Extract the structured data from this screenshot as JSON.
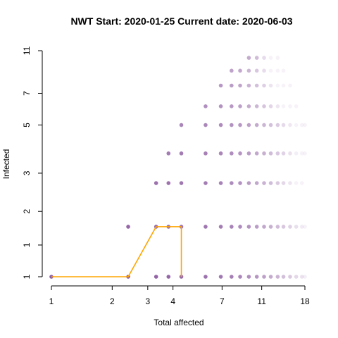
{
  "chart_data": {
    "type": "scatter",
    "title": "NWT Start:  2020-01-25   Current date:  2020-06-03",
    "xlabel": "Total affected",
    "ylabel": "Infected",
    "x_scale": "log",
    "y_scale": "log",
    "xlim": [
      1,
      18
    ],
    "ylim": [
      1,
      11
    ],
    "x_ticks": [
      1,
      2,
      3,
      4,
      7,
      11,
      18
    ],
    "x_tick_labels": [
      "1",
      "2",
      "3",
      "4",
      "7",
      "11",
      "18"
    ],
    "y_ticks": [
      1,
      1.4,
      2,
      3,
      5,
      7,
      11
    ],
    "y_tick_labels": [
      "1",
      "1",
      "2",
      "3",
      "5",
      "7",
      "11"
    ],
    "grid": false,
    "legend": "none",
    "point_color": "#8e5ea2",
    "line_color": "#ffa500",
    "y_levels": [
      1,
      1.7,
      2.7,
      3.7,
      5,
      6.1,
      7.6,
      8.9,
      10.2
    ],
    "scatter_rows": [
      {
        "y": 1,
        "x": [
          1,
          2.4,
          3.3,
          3.8,
          4.4,
          5.8,
          6.9,
          7.8,
          8.6,
          9.5,
          10.4,
          11.3,
          12.2,
          13.2,
          14.1,
          15.2,
          16.3,
          17.4,
          18
        ]
      },
      {
        "y": 1.7,
        "x": [
          2.4,
          3.3,
          3.8,
          4.4,
          5.8,
          6.9,
          7.8,
          8.6,
          9.5,
          10.4,
          11.3,
          12.2,
          13.2,
          14.1,
          15.2,
          16.3,
          17.4,
          18
        ]
      },
      {
        "y": 2.7,
        "x": [
          3.3,
          3.8,
          4.4,
          5.8,
          6.9,
          7.8,
          8.6,
          9.5,
          10.4,
          11.3,
          12.2,
          13.2,
          14.1,
          15.2,
          16.3,
          17.4
        ]
      },
      {
        "y": 3.7,
        "x": [
          3.8,
          4.4,
          5.8,
          6.9,
          7.8,
          8.6,
          9.5,
          10.4,
          11.3,
          12.2,
          13.2,
          14.1,
          15.2,
          16.3,
          17.4,
          18
        ]
      },
      {
        "y": 5,
        "x": [
          4.4,
          5.8,
          6.9,
          7.8,
          8.6,
          9.5,
          10.4,
          11.3,
          12.2,
          13.2,
          14.1,
          15.2,
          16.3,
          17.4,
          18
        ]
      },
      {
        "y": 6.1,
        "x": [
          5.8,
          6.9,
          7.8,
          8.6,
          9.5,
          10.4,
          11.3,
          12.2,
          13.2,
          14.1,
          15.2,
          16.3
        ]
      },
      {
        "y": 7.6,
        "x": [
          6.9,
          7.8,
          8.6,
          9.5,
          10.4,
          11.3,
          12.2,
          13.2,
          14.1,
          15.2
        ]
      },
      {
        "y": 8.9,
        "x": [
          7.8,
          8.6,
          9.5,
          10.4,
          11.3,
          12.2,
          13.2,
          14.1
        ]
      },
      {
        "y": 10.2,
        "x": [
          9.5,
          10.4,
          11.3,
          12.2,
          13.2
        ]
      }
    ],
    "series": [
      {
        "x": [
          1,
          2.4,
          3.3,
          3.8,
          4.4,
          4.4
        ],
        "y": [
          1,
          1,
          1.7,
          1.7,
          1.7,
          1
        ]
      }
    ]
  }
}
